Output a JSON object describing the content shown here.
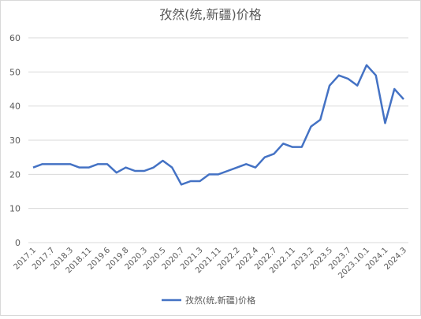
{
  "chart_data": {
    "type": "line",
    "title": "孜然(统,新疆)价格",
    "categories": [
      "2017.1",
      null,
      "2017.7",
      null,
      "2018.3",
      null,
      "2018.11",
      null,
      "2019.6",
      null,
      "2019.8",
      null,
      "2020.3",
      null,
      "2020.5",
      null,
      "2020.7",
      null,
      "2021.3",
      null,
      "2021.11",
      null,
      "2022.2",
      null,
      "2022.4",
      null,
      "2022.7",
      null,
      "2022.11",
      null,
      "2023.2",
      null,
      "2023.5",
      null,
      "2023.7",
      null,
      "2023.10.1",
      null,
      "2024.1",
      null,
      "2024.3"
    ],
    "series": [
      {
        "name": "孜然(统,新疆)价格",
        "color": "#4472c4",
        "values": [
          22,
          23,
          23,
          23,
          23,
          22,
          22,
          23,
          23,
          20.5,
          22,
          21,
          21,
          22,
          24,
          22,
          17,
          18,
          18,
          20,
          20,
          21,
          22,
          23,
          22,
          25,
          26,
          29,
          28,
          28,
          34,
          36,
          46,
          49,
          48,
          46,
          52,
          49,
          35,
          45,
          42
        ]
      }
    ],
    "ylim": [
      0,
      60
    ],
    "yticks": [
      0,
      10,
      20,
      30,
      40,
      50,
      60
    ],
    "grid": true,
    "legend": "bottom"
  }
}
